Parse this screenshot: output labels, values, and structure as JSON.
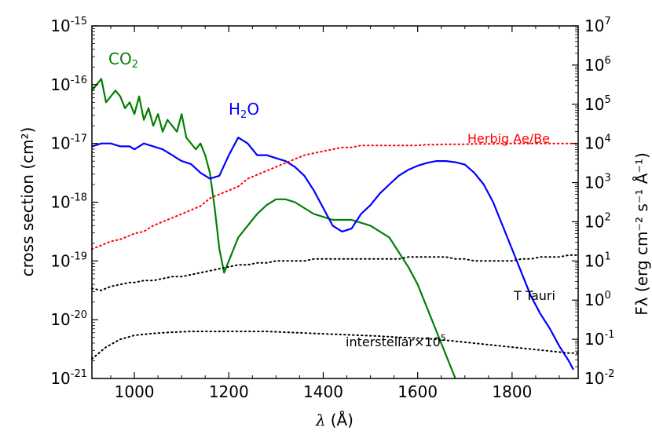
{
  "chart_data": {
    "type": "line",
    "xlabel_symbol": "λ",
    "xlabel_unit": "(Å)",
    "ylabel_left": "cross section (cm²)",
    "ylabel_right": "Fλ (erg cm⁻² s⁻¹ Å⁻¹)",
    "xlim": [
      910,
      1940
    ],
    "ylim_left_exp": [
      -21,
      -15
    ],
    "ylim_right_exp": [
      -2,
      7
    ],
    "x_ticks": [
      1000,
      1200,
      1400,
      1600,
      1800
    ],
    "x_tick_labels": [
      "1000",
      "1200",
      "1400",
      "1600",
      "1800"
    ],
    "y_left_ticks": [
      {
        "base": "10",
        "exp": "-21"
      },
      {
        "base": "10",
        "exp": "-20"
      },
      {
        "base": "10",
        "exp": "-19"
      },
      {
        "base": "10",
        "exp": "-18"
      },
      {
        "base": "10",
        "exp": "-17"
      },
      {
        "base": "10",
        "exp": "-16"
      },
      {
        "base": "10",
        "exp": "-15"
      }
    ],
    "y_right_ticks": [
      {
        "base": "10",
        "exp": "-2"
      },
      {
        "base": "10",
        "exp": "-1"
      },
      {
        "base": "10",
        "exp": "0"
      },
      {
        "base": "10",
        "exp": "1"
      },
      {
        "base": "10",
        "exp": "2"
      },
      {
        "base": "10",
        "exp": "3"
      },
      {
        "base": "10",
        "exp": "4"
      },
      {
        "base": "10",
        "exp": "5"
      },
      {
        "base": "10",
        "exp": "6"
      },
      {
        "base": "10",
        "exp": "7"
      }
    ],
    "series": [
      {
        "name": "CO2",
        "label_main": "CO",
        "label_sub": "2",
        "axis": "left",
        "color": "#008000",
        "style": "solid",
        "x": [
          910,
          920,
          930,
          940,
          950,
          960,
          970,
          980,
          990,
          1000,
          1010,
          1020,
          1030,
          1040,
          1050,
          1060,
          1070,
          1080,
          1090,
          1100,
          1110,
          1120,
          1130,
          1140,
          1150,
          1160,
          1170,
          1180,
          1190,
          1200,
          1220,
          1240,
          1260,
          1280,
          1300,
          1320,
          1340,
          1360,
          1380,
          1400,
          1420,
          1440,
          1460,
          1480,
          1500,
          1520,
          1540,
          1560,
          1580,
          1600,
          1620,
          1640,
          1660,
          1680
        ],
        "y": [
          -16.1,
          -16.0,
          -15.9,
          -16.3,
          -16.2,
          -16.1,
          -16.2,
          -16.4,
          -16.3,
          -16.5,
          -16.2,
          -16.6,
          -16.4,
          -16.7,
          -16.5,
          -16.8,
          -16.6,
          -16.7,
          -16.8,
          -16.5,
          -16.9,
          -17.0,
          -17.1,
          -17.0,
          -17.2,
          -17.5,
          -18.1,
          -18.8,
          -19.2,
          -19.0,
          -18.6,
          -18.4,
          -18.2,
          -18.05,
          -17.95,
          -17.95,
          -18.0,
          -18.1,
          -18.2,
          -18.25,
          -18.3,
          -18.3,
          -18.3,
          -18.35,
          -18.4,
          -18.5,
          -18.6,
          -18.85,
          -19.1,
          -19.4,
          -19.8,
          -20.2,
          -20.6,
          -21.0
        ]
      },
      {
        "name": "H2O",
        "label_main": "H",
        "label_sub": "2",
        "label_end": "O",
        "axis": "left",
        "color": "#0000ff",
        "style": "solid",
        "x": [
          910,
          930,
          950,
          970,
          990,
          1000,
          1020,
          1040,
          1060,
          1070,
          1080,
          1090,
          1100,
          1120,
          1140,
          1160,
          1180,
          1200,
          1220,
          1240,
          1260,
          1280,
          1300,
          1320,
          1340,
          1360,
          1380,
          1400,
          1420,
          1440,
          1460,
          1480,
          1500,
          1520,
          1540,
          1560,
          1580,
          1600,
          1620,
          1640,
          1660,
          1680,
          1700,
          1720,
          1740,
          1760,
          1780,
          1800,
          1820,
          1840,
          1860,
          1880,
          1900,
          1920,
          1930
        ],
        "y": [
          -17.05,
          -17.0,
          -17.0,
          -17.05,
          -17.05,
          -17.1,
          -17.0,
          -17.05,
          -17.1,
          -17.15,
          -17.2,
          -17.25,
          -17.3,
          -17.35,
          -17.5,
          -17.6,
          -17.55,
          -17.2,
          -16.9,
          -17.0,
          -17.2,
          -17.2,
          -17.25,
          -17.3,
          -17.4,
          -17.55,
          -17.8,
          -18.1,
          -18.4,
          -18.5,
          -18.45,
          -18.2,
          -18.05,
          -17.85,
          -17.7,
          -17.55,
          -17.45,
          -17.38,
          -17.33,
          -17.3,
          -17.3,
          -17.32,
          -17.36,
          -17.5,
          -17.7,
          -18.0,
          -18.4,
          -18.8,
          -19.2,
          -19.6,
          -19.9,
          -20.15,
          -20.45,
          -20.7,
          -20.85
        ]
      },
      {
        "name": "Herbig Ae/Be",
        "axis": "right",
        "color": "#ff0000",
        "style": "dotted",
        "x": [
          910,
          930,
          950,
          970,
          990,
          1000,
          1020,
          1040,
          1060,
          1080,
          1100,
          1120,
          1140,
          1160,
          1180,
          1200,
          1220,
          1240,
          1260,
          1280,
          1300,
          1320,
          1340,
          1360,
          1380,
          1400,
          1420,
          1440,
          1460,
          1480,
          1500,
          1520,
          1540,
          1560,
          1580,
          1600,
          1620,
          1640,
          1660,
          1680,
          1700,
          1720,
          1740,
          1760,
          1780,
          1800,
          1820,
          1840,
          1860,
          1880,
          1900,
          1920,
          1940
        ],
        "y": [
          1.3,
          1.4,
          1.5,
          1.55,
          1.65,
          1.7,
          1.75,
          1.9,
          2.0,
          2.1,
          2.2,
          2.3,
          2.4,
          2.6,
          2.7,
          2.8,
          2.9,
          3.1,
          3.2,
          3.3,
          3.4,
          3.5,
          3.6,
          3.7,
          3.75,
          3.8,
          3.85,
          3.9,
          3.9,
          3.95,
          3.95,
          3.95,
          3.95,
          3.95,
          3.95,
          3.95,
          3.97,
          3.97,
          3.98,
          3.98,
          3.98,
          3.99,
          3.99,
          3.99,
          4.0,
          4.0,
          4.0,
          4.0,
          4.0,
          4.0,
          4.0,
          4.0,
          4.0
        ]
      },
      {
        "name": "T Tauri",
        "axis": "right",
        "color": "#000000",
        "style": "dotted",
        "x": [
          910,
          930,
          950,
          970,
          990,
          1000,
          1020,
          1040,
          1060,
          1080,
          1100,
          1120,
          1140,
          1160,
          1180,
          1200,
          1220,
          1240,
          1260,
          1280,
          1300,
          1320,
          1340,
          1360,
          1380,
          1400,
          1420,
          1440,
          1460,
          1480,
          1500,
          1520,
          1540,
          1560,
          1580,
          1600,
          1620,
          1640,
          1660,
          1680,
          1700,
          1720,
          1740,
          1760,
          1780,
          1800,
          1820,
          1840,
          1860,
          1880,
          1900,
          1920,
          1940
        ],
        "y": [
          0.3,
          0.25,
          0.35,
          0.4,
          0.45,
          0.45,
          0.5,
          0.5,
          0.55,
          0.6,
          0.6,
          0.65,
          0.7,
          0.75,
          0.8,
          0.85,
          0.9,
          0.9,
          0.95,
          0.95,
          1.0,
          1.0,
          1.0,
          1.0,
          1.05,
          1.05,
          1.05,
          1.05,
          1.05,
          1.05,
          1.05,
          1.05,
          1.05,
          1.05,
          1.1,
          1.1,
          1.1,
          1.1,
          1.1,
          1.05,
          1.05,
          1.0,
          1.0,
          1.0,
          1.0,
          1.0,
          1.05,
          1.05,
          1.1,
          1.1,
          1.1,
          1.15,
          1.15
        ]
      },
      {
        "name": "interstellar×10⁵",
        "label_main": "interstellar×10",
        "label_sup": "5",
        "axis": "right",
        "color": "#000000",
        "style": "dotted",
        "x": [
          910,
          940,
          970,
          1000,
          1040,
          1080,
          1120,
          1160,
          1200,
          1240,
          1280,
          1320,
          1360,
          1400,
          1440,
          1480,
          1520,
          1560,
          1600,
          1640,
          1680,
          1720,
          1760,
          1800,
          1840,
          1880,
          1920,
          1940
        ],
        "y": [
          -1.5,
          -1.2,
          -1.0,
          -0.9,
          -0.85,
          -0.82,
          -0.8,
          -0.8,
          -0.8,
          -0.8,
          -0.8,
          -0.82,
          -0.84,
          -0.86,
          -0.88,
          -0.9,
          -0.92,
          -0.95,
          -0.97,
          -1.0,
          -1.05,
          -1.1,
          -1.15,
          -1.2,
          -1.25,
          -1.3,
          -1.35,
          -1.35
        ]
      }
    ]
  }
}
